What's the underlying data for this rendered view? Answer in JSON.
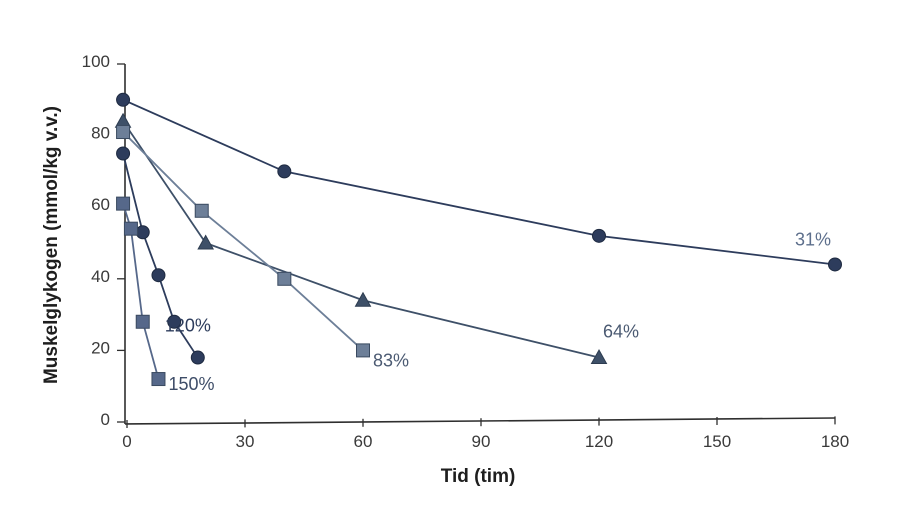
{
  "chart_data": {
    "type": "line",
    "xlabel": "Tid (tim)",
    "ylabel": "Muskelglykogen (mmol/kg v.v.)",
    "xlim": [
      0,
      180
    ],
    "ylim": [
      0,
      100
    ],
    "xticks": [
      0,
      30,
      60,
      90,
      120,
      150,
      180
    ],
    "yticks": [
      0,
      20,
      40,
      60,
      80,
      100
    ],
    "grid": false,
    "legend": "none",
    "series": [
      {
        "name": "31%",
        "marker": "circle",
        "color": "#2d3c5c",
        "x": [
          -1,
          40,
          120,
          180
        ],
        "y": [
          90,
          70,
          52,
          44
        ]
      },
      {
        "name": "64%",
        "marker": "triangle",
        "color": "#3e5068",
        "x": [
          -1,
          20,
          60,
          120
        ],
        "y": [
          84,
          50,
          34,
          18
        ]
      },
      {
        "name": "83%",
        "marker": "square",
        "color": "#6d7f98",
        "x": [
          -1,
          19,
          40,
          60
        ],
        "y": [
          81,
          59,
          40,
          20
        ]
      },
      {
        "name": "120%",
        "marker": "circle",
        "color": "#2d3c5c",
        "x": [
          -1,
          4,
          8,
          12,
          18
        ],
        "y": [
          75,
          53,
          41,
          28,
          18
        ]
      },
      {
        "name": "150%",
        "marker": "square",
        "color": "#56688a",
        "x": [
          -1,
          1,
          4,
          8
        ],
        "y": [
          61,
          54,
          28,
          12
        ]
      }
    ]
  }
}
